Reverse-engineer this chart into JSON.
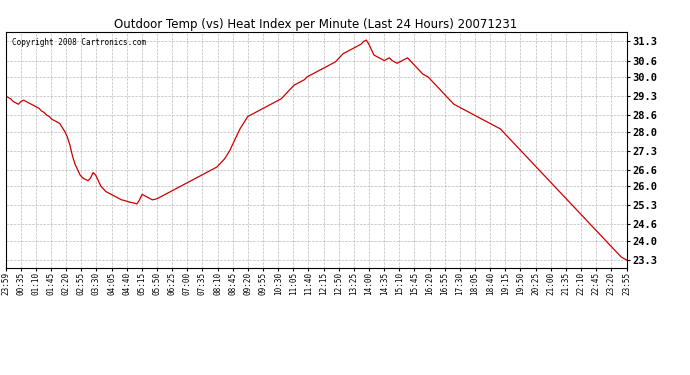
{
  "title": "Outdoor Temp (vs) Heat Index per Minute (Last 24 Hours) 20071231",
  "copyright": "Copyright 2008 Cartronics.com",
  "line_color": "#cc0000",
  "bg_color": "#ffffff",
  "grid_color": "#aaaaaa",
  "yticks": [
    23.3,
    24.0,
    24.6,
    25.3,
    26.0,
    26.6,
    27.3,
    28.0,
    28.6,
    29.3,
    30.0,
    30.6,
    31.3
  ],
  "ylim": [
    23.0,
    31.65
  ],
  "xtick_labels": [
    "23:59",
    "00:35",
    "01:10",
    "01:45",
    "02:20",
    "02:55",
    "03:30",
    "04:05",
    "04:40",
    "05:15",
    "05:50",
    "06:25",
    "07:00",
    "07:35",
    "08:10",
    "08:45",
    "09:20",
    "09:55",
    "10:30",
    "11:05",
    "11:40",
    "12:15",
    "12:50",
    "13:25",
    "14:00",
    "14:35",
    "15:10",
    "15:45",
    "16:20",
    "16:55",
    "17:30",
    "18:05",
    "18:40",
    "19:15",
    "19:50",
    "20:25",
    "21:00",
    "21:35",
    "22:10",
    "22:45",
    "23:20",
    "23:55"
  ],
  "data_y": [
    29.3,
    29.25,
    29.2,
    29.1,
    29.05,
    29.0,
    29.1,
    29.15,
    29.1,
    29.05,
    29.0,
    28.95,
    28.9,
    28.85,
    28.75,
    28.7,
    28.6,
    28.55,
    28.45,
    28.4,
    28.35,
    28.3,
    28.15,
    28.0,
    27.8,
    27.5,
    27.1,
    26.8,
    26.6,
    26.4,
    26.3,
    26.25,
    26.2,
    26.3,
    26.5,
    26.4,
    26.2,
    26.0,
    25.9,
    25.8,
    25.75,
    25.7,
    25.65,
    25.6,
    25.55,
    25.5,
    25.48,
    25.45,
    25.42,
    25.4,
    25.38,
    25.35,
    25.5,
    25.7,
    25.65,
    25.6,
    25.55,
    25.5,
    25.52,
    25.55,
    25.6,
    25.65,
    25.7,
    25.75,
    25.8,
    25.85,
    25.9,
    25.95,
    26.0,
    26.05,
    26.1,
    26.15,
    26.2,
    26.25,
    26.3,
    26.35,
    26.4,
    26.45,
    26.5,
    26.55,
    26.6,
    26.65,
    26.7,
    26.8,
    26.9,
    27.0,
    27.15,
    27.3,
    27.5,
    27.7,
    27.9,
    28.1,
    28.25,
    28.4,
    28.55,
    28.6,
    28.65,
    28.7,
    28.75,
    28.8,
    28.85,
    28.9,
    28.95,
    29.0,
    29.05,
    29.1,
    29.15,
    29.2,
    29.3,
    29.4,
    29.5,
    29.6,
    29.7,
    29.75,
    29.8,
    29.85,
    29.9,
    30.0,
    30.05,
    30.1,
    30.15,
    30.2,
    30.25,
    30.3,
    30.35,
    30.4,
    30.45,
    30.5,
    30.55,
    30.65,
    30.75,
    30.85,
    30.9,
    30.95,
    31.0,
    31.05,
    31.1,
    31.15,
    31.2,
    31.3,
    31.35,
    31.2,
    31.0,
    30.8,
    30.75,
    30.7,
    30.65,
    30.6,
    30.65,
    30.7,
    30.6,
    30.55,
    30.5,
    30.55,
    30.6,
    30.65,
    30.7,
    30.6,
    30.5,
    30.4,
    30.3,
    30.2,
    30.1,
    30.05,
    30.0,
    29.9,
    29.8,
    29.7,
    29.6,
    29.5,
    29.4,
    29.3,
    29.2,
    29.1,
    29.0,
    28.95,
    28.9,
    28.85,
    28.8,
    28.75,
    28.7,
    28.65,
    28.6,
    28.55,
    28.5,
    28.45,
    28.4,
    28.35,
    28.3,
    28.25,
    28.2,
    28.15,
    28.1,
    28.0,
    27.9,
    27.8,
    27.7,
    27.6,
    27.5,
    27.4,
    27.3,
    27.2,
    27.1,
    27.0,
    26.9,
    26.8,
    26.7,
    26.6,
    26.5,
    26.4,
    26.3,
    26.2,
    26.1,
    26.0,
    25.9,
    25.8,
    25.7,
    25.6,
    25.5,
    25.4,
    25.3,
    25.2,
    25.1,
    25.0,
    24.9,
    24.8,
    24.7,
    24.6,
    24.5,
    24.4,
    24.3,
    24.2,
    24.1,
    24.0,
    23.9,
    23.8,
    23.7,
    23.6,
    23.5,
    23.4,
    23.35,
    23.3
  ]
}
